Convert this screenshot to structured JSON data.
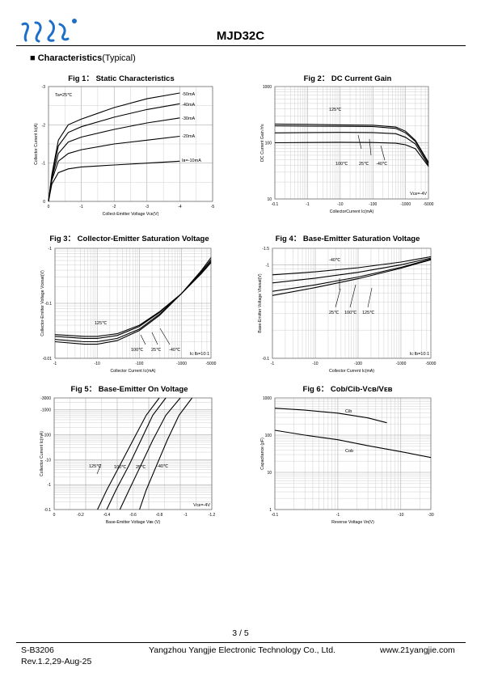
{
  "header": {
    "part_number": "MJD32C"
  },
  "section_title": {
    "bullet": "■",
    "bold": "Characteristics",
    "normal": "(Typical)"
  },
  "figures": [
    {
      "title": "Fig 1： Static Characteristics",
      "ylabel": "Collector Current  Iᴄ(A)",
      "xlabel": "Collect-Emitter Voltage  Vᴄᴇ(V)",
      "x_ticks": [
        "0",
        "-1",
        "-2",
        "-3",
        "-4",
        "-5"
      ],
      "y_ticks": [
        "0",
        "-1",
        "-2",
        "-3"
      ],
      "annotation": "Ta=25℃",
      "curve_labels": [
        "-50mA",
        "-40mA",
        "-30mA",
        "-20mA",
        "Iʙ=-10mA"
      ]
    },
    {
      "title": "Fig 2： DC Current Gain",
      "ylabel": "DC Current Gain  hᶠᴇ",
      "xlabel": "CollectorCurrent  Iᴄ(mA)",
      "x_ticks": [
        "-0.1",
        "-1",
        "-10",
        "-100",
        "-1000",
        "-5000"
      ],
      "y_ticks": [
        "10",
        "100",
        "1000"
      ],
      "annotation": "Vᴄᴇ=-4V",
      "curve_labels": [
        "125℃",
        "100℃",
        "25℃",
        "-40℃"
      ]
    },
    {
      "title": "Fig 3： Collector-Emitter Saturation Voltage",
      "ylabel": "Collector-Emitter Voltage  Vcesat(V)",
      "xlabel": "Collector Current  Iᴄ(mA)",
      "x_ticks": [
        "-1",
        "-10",
        "-100",
        "-1000",
        "-5000"
      ],
      "y_ticks": [
        "-0.01",
        "-0.1",
        "-1"
      ],
      "annotation": "Ic:Ib=10:1",
      "curve_labels": [
        "125℃",
        "100℃",
        "25℃",
        "-40℃"
      ]
    },
    {
      "title": "Fig 4： Base-Emitter Saturation Voltage",
      "ylabel": "Base-Emitter Voltage  Vbesat(V)",
      "xlabel": "Collector Current  Iᴄ(mA)",
      "x_ticks": [
        "-1",
        "-10",
        "-100",
        "-1000",
        "-5000"
      ],
      "y_ticks": [
        "-0.1",
        "-1",
        "-1.5"
      ],
      "annotation": "Ic:Ib=10:1",
      "curve_labels": [
        "-40℃",
        "25℃",
        "100℃",
        "125℃"
      ]
    },
    {
      "title": "Fig 5： Base-Emitter On Voltage",
      "ylabel": "Collector Current  Iᴄ(mA)",
      "xlabel": "Base-Emitter Voltage  Vʙᴇ (V)",
      "x_ticks": [
        "0",
        "-0.2",
        "-0.4",
        "-0.6",
        "-0.8",
        "-1",
        "-1.2"
      ],
      "y_ticks": [
        "-0.1",
        "-1",
        "-10",
        "-100",
        "-1000",
        "-3000"
      ],
      "annotation": "Vᴄᴇ=-4V",
      "curve_labels": [
        "125℃",
        "100℃",
        "25℃",
        "-40℃"
      ]
    },
    {
      "title": "Fig 6： Cob/Cib-Vᴄʙ/Vᴇʙ",
      "ylabel": "Capacitance  (pF)",
      "xlabel": "Reverse Voltage  Vʀ(V)",
      "x_ticks": [
        "-0.1",
        "-1",
        "-10",
        "-30"
      ],
      "y_ticks": [
        "1",
        "10",
        "100",
        "1000"
      ],
      "annotation": "",
      "curve_labels": [
        "Cib",
        "Cob"
      ]
    }
  ],
  "chart_data": [
    {
      "type": "line",
      "title": "Fig 1： Static Characteristics",
      "xlabel": "Collect-Emitter Voltage  VCE(V)",
      "ylabel": "Collector Current  IC(A)",
      "xlim": [
        0,
        -5
      ],
      "ylim": [
        0,
        -3
      ],
      "series": [
        {
          "name": "-50mA",
          "x": [
            0,
            -0.1,
            -0.3,
            -0.6,
            -1,
            -2,
            -3,
            -4
          ],
          "y": [
            0,
            -0.7,
            -1.6,
            -2.0,
            -2.15,
            -2.45,
            -2.68,
            -2.83
          ]
        },
        {
          "name": "-40mA",
          "x": [
            0,
            -0.1,
            -0.3,
            -0.6,
            -1,
            -2,
            -3,
            -4
          ],
          "y": [
            0,
            -0.65,
            -1.45,
            -1.8,
            -1.95,
            -2.2,
            -2.4,
            -2.55
          ]
        },
        {
          "name": "-30mA",
          "x": [
            0,
            -0.1,
            -0.3,
            -0.6,
            -1,
            -2,
            -3,
            -4
          ],
          "y": [
            0,
            -0.6,
            -1.25,
            -1.55,
            -1.68,
            -1.88,
            -2.05,
            -2.18
          ]
        },
        {
          "name": "-20mA",
          "x": [
            0,
            -0.1,
            -0.3,
            -0.6,
            -1,
            -2,
            -3,
            -4
          ],
          "y": [
            0,
            -0.55,
            -1.05,
            -1.25,
            -1.35,
            -1.5,
            -1.6,
            -1.7
          ]
        },
        {
          "name": "IB=-10mA",
          "x": [
            0,
            -0.1,
            -0.3,
            -0.6,
            -1,
            -2,
            -3,
            -4
          ],
          "y": [
            0,
            -0.45,
            -0.75,
            -0.85,
            -0.9,
            -0.95,
            -1.0,
            -1.05
          ]
        }
      ]
    },
    {
      "type": "line",
      "title": "Fig 2： DC Current Gain",
      "xlabel": "CollectorCurrent  IC(mA)",
      "ylabel": "DC Current Gain  hFE",
      "xlim": [
        -0.1,
        -5000
      ],
      "ylim": [
        10,
        1000
      ],
      "log_x": true,
      "log_y": true,
      "series": [
        {
          "name": "125℃",
          "x": [
            -0.1,
            -1,
            -10,
            -100,
            -500,
            -1000,
            -2000,
            -5000
          ],
          "y": [
            215,
            212,
            208,
            205,
            190,
            160,
            110,
            45
          ]
        },
        {
          "name": "100℃",
          "x": [
            -0.1,
            -1,
            -10,
            -100,
            -500,
            -1000,
            -2000,
            -5000
          ],
          "y": [
            200,
            198,
            196,
            194,
            180,
            150,
            105,
            43
          ]
        },
        {
          "name": "25℃",
          "x": [
            -0.1,
            -1,
            -10,
            -100,
            -500,
            -1000,
            -2000,
            -5000
          ],
          "y": [
            150,
            152,
            153,
            152,
            145,
            125,
            95,
            40
          ]
        },
        {
          "name": "-40℃",
          "x": [
            -0.1,
            -1,
            -10,
            -100,
            -500,
            -1000,
            -2000,
            -5000
          ],
          "y": [
            100,
            101,
            102,
            101,
            98,
            92,
            78,
            38
          ]
        }
      ]
    },
    {
      "type": "line",
      "title": "Fig 3： Collector-Emitter Saturation Voltage",
      "xlabel": "Collector Current  IC(mA)",
      "ylabel": "Collector-Emitter Voltage  Vcesat(V)",
      "xlim": [
        -1,
        -5000
      ],
      "ylim": [
        -0.01,
        -1
      ],
      "log_x": true,
      "log_y": true,
      "series": [
        {
          "name": "125℃",
          "x": [
            -1,
            -5,
            -10,
            -30,
            -100,
            -300,
            -1000,
            -3000,
            -5000
          ],
          "y": [
            -0.027,
            -0.025,
            -0.025,
            -0.028,
            -0.04,
            -0.07,
            -0.15,
            -0.35,
            -0.55
          ]
        },
        {
          "name": "100℃",
          "x": [
            -1,
            -5,
            -10,
            -30,
            -100,
            -300,
            -1000,
            -3000,
            -5000
          ],
          "y": [
            -0.025,
            -0.023,
            -0.023,
            -0.026,
            -0.038,
            -0.068,
            -0.15,
            -0.36,
            -0.58
          ]
        },
        {
          "name": "25℃",
          "x": [
            -1,
            -5,
            -10,
            -30,
            -100,
            -300,
            -1000,
            -3000,
            -5000
          ],
          "y": [
            -0.022,
            -0.02,
            -0.02,
            -0.023,
            -0.034,
            -0.063,
            -0.15,
            -0.38,
            -0.62
          ]
        },
        {
          "name": "-40℃",
          "x": [
            -1,
            -5,
            -10,
            -30,
            -100,
            -300,
            -1000,
            -3000,
            -5000
          ],
          "y": [
            -0.02,
            -0.018,
            -0.018,
            -0.021,
            -0.032,
            -0.06,
            -0.15,
            -0.4,
            -0.68
          ]
        }
      ]
    },
    {
      "type": "line",
      "title": "Fig 4： Base-Emitter Saturation Voltage",
      "xlabel": "Collector Current  IC(mA)",
      "ylabel": "Base-Emitter Voltage  Vbesat(V)",
      "xlim": [
        -1,
        -5000
      ],
      "ylim": [
        -0.1,
        -1.5
      ],
      "log_x": true,
      "log_y": true,
      "series": [
        {
          "name": "-40℃",
          "x": [
            -1,
            -10,
            -100,
            -1000,
            -5000
          ],
          "y": [
            -0.78,
            -0.84,
            -0.93,
            -1.07,
            -1.22
          ]
        },
        {
          "name": "25℃",
          "x": [
            -1,
            -10,
            -100,
            -1000,
            -5000
          ],
          "y": [
            -0.64,
            -0.72,
            -0.83,
            -1.0,
            -1.18
          ]
        },
        {
          "name": "100℃",
          "x": [
            -1,
            -10,
            -100,
            -1000,
            -5000
          ],
          "y": [
            -0.52,
            -0.61,
            -0.74,
            -0.94,
            -1.15
          ]
        },
        {
          "name": "125℃",
          "x": [
            -1,
            -10,
            -100,
            -1000,
            -5000
          ],
          "y": [
            -0.47,
            -0.57,
            -0.71,
            -0.92,
            -1.13
          ]
        }
      ]
    },
    {
      "type": "line",
      "title": "Fig 5： Base-Emitter On Voltage",
      "xlabel": "Base-Emitter Voltage  VBE (V)",
      "ylabel": "Collector Current  IC(mA)",
      "xlim": [
        0,
        -1.2
      ],
      "ylim": [
        -0.1,
        -3000
      ],
      "log_y": true,
      "series": [
        {
          "name": "125℃",
          "x": [
            -0.33,
            -0.4,
            -0.5,
            -0.6,
            -0.7,
            -0.8
          ],
          "y": [
            -0.1,
            -0.6,
            -6,
            -60,
            -600,
            -3000
          ]
        },
        {
          "name": "100℃",
          "x": [
            -0.4,
            -0.47,
            -0.57,
            -0.66,
            -0.75,
            -0.85
          ],
          "y": [
            -0.1,
            -0.6,
            -6,
            -60,
            -600,
            -3000
          ]
        },
        {
          "name": "25℃",
          "x": [
            -0.5,
            -0.57,
            -0.66,
            -0.75,
            -0.85,
            -0.96
          ],
          "y": [
            -0.1,
            -0.6,
            -6,
            -60,
            -600,
            -3000
          ]
        },
        {
          "name": "-40℃",
          "x": [
            -0.65,
            -0.7,
            -0.78,
            -0.86,
            -0.95,
            -1.05
          ],
          "y": [
            -0.1,
            -0.6,
            -6,
            -60,
            -600,
            -3000
          ]
        }
      ]
    },
    {
      "type": "line",
      "title": "Fig 6： Cob/Cib-VCB/VEB",
      "xlabel": "Reverse Voltage  VR(V)",
      "ylabel": "Capacitance  (pF)",
      "xlim": [
        -0.1,
        -30
      ],
      "ylim": [
        1,
        1000
      ],
      "log_x": true,
      "log_y": true,
      "series": [
        {
          "name": "Cib",
          "x": [
            -0.1,
            -0.3,
            -1,
            -3,
            -6
          ],
          "y": [
            530,
            470,
            390,
            290,
            215
          ]
        },
        {
          "name": "Cob",
          "x": [
            -0.1,
            -0.3,
            -1,
            -3,
            -10,
            -30
          ],
          "y": [
            135,
            100,
            75,
            52,
            36,
            25
          ]
        }
      ]
    }
  ],
  "footer": {
    "page": "3 / 5",
    "doc_number": "S-B3206",
    "revision": "Rev.1.2,29-Aug-25",
    "company": "Yangzhou Yangjie Electronic Technology Co., Ltd.",
    "website": "www.21yangjie.com"
  }
}
